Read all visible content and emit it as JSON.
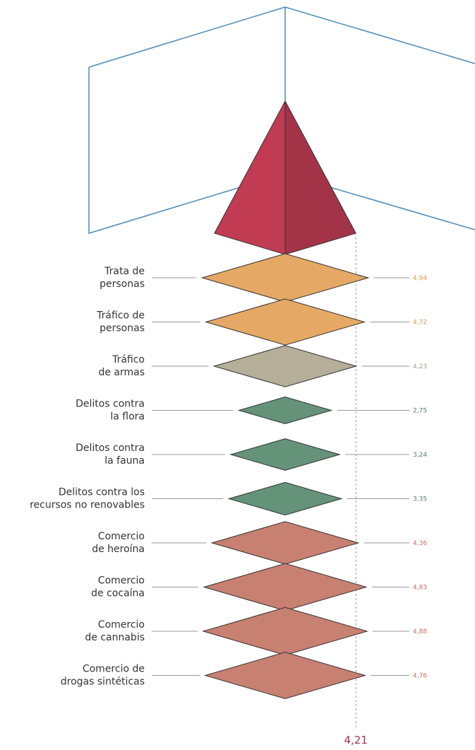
{
  "chart_data": {
    "type": "diamond",
    "categories": [
      [
        "Trata de",
        "personas"
      ],
      [
        "Tráfico de",
        "personas"
      ],
      [
        "Tráfico",
        "de armas"
      ],
      [
        "Delitos contra",
        "la flora"
      ],
      [
        "Delitos contra",
        "la fauna"
      ],
      [
        "Delitos contra los",
        "recursos no renovables"
      ],
      [
        "Comercio",
        "de heroína"
      ],
      [
        "Comercio",
        "de cocaína"
      ],
      [
        "Comercio",
        "de cannabis"
      ],
      [
        "Comercio de",
        "drogas sintéticas"
      ]
    ],
    "values": [
      4.94,
      4.72,
      4.23,
      2.75,
      3.24,
      3.35,
      4.36,
      4.83,
      4.88,
      4.76
    ],
    "value_labels": [
      "4,94",
      "4,72",
      "4,23",
      "2,75",
      "3,24",
      "3,35",
      "4,36",
      "4,83",
      "4,88",
      "4,76"
    ],
    "colors": [
      "#e5a865",
      "#e5a865",
      "#b5ae98",
      "#64937a",
      "#64937a",
      "#64937a",
      "#c88070",
      "#c88070",
      "#c88070",
      "#c88070"
    ],
    "label_colors": [
      "#e0994f",
      "#e0994f",
      "#a8a08a",
      "#4f8068",
      "#4f8068",
      "#4f8068",
      "#c87060",
      "#c87060",
      "#c87060",
      "#c87060"
    ],
    "reference": {
      "value": 4.21,
      "label": "4,21",
      "color": "#b03050"
    }
  }
}
